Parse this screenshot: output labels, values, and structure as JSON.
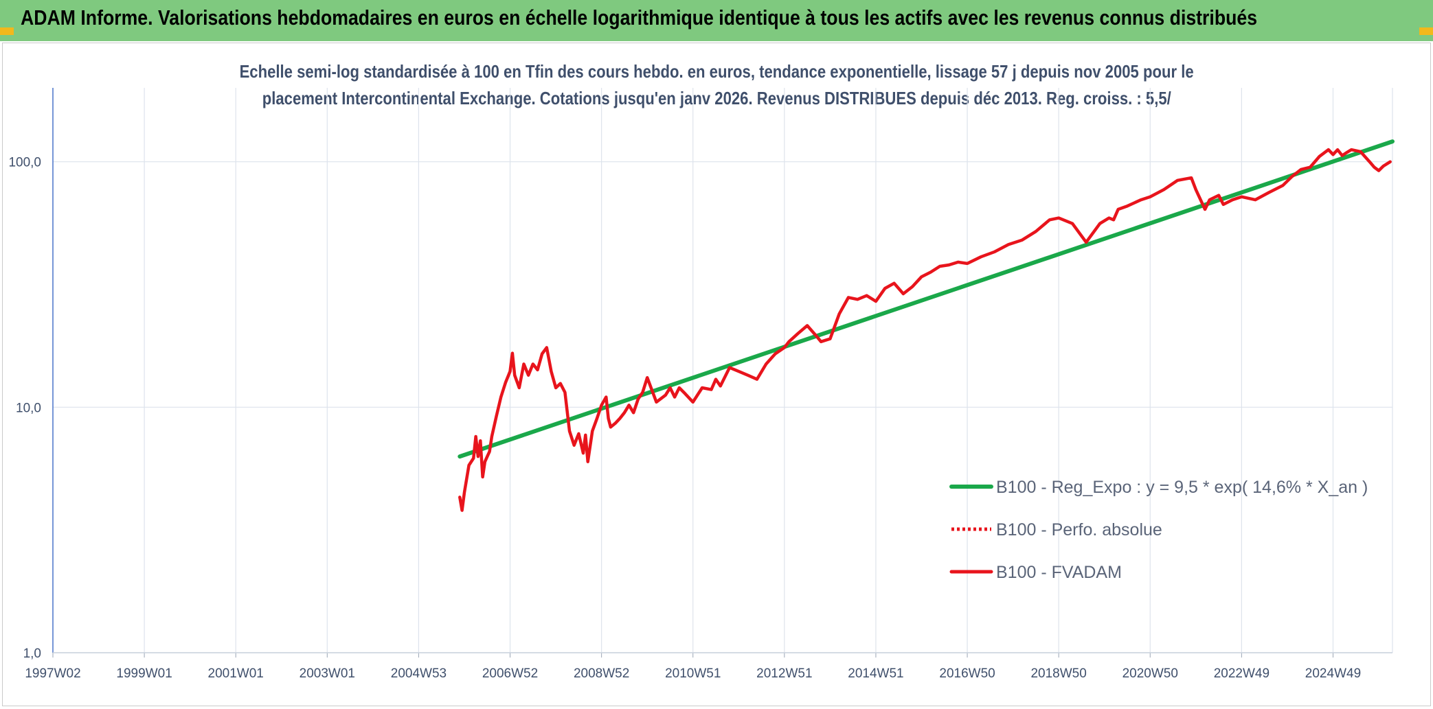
{
  "header": {
    "title": "ADAM Informe. Valorisations hebdomadaires en euros en échelle logarithmique identique à tous les actifs avec les revenus connus distribués",
    "background": "#7fc97f",
    "corner_color": "#f2b81c"
  },
  "chart_data": {
    "type": "line",
    "title_lines": [
      "Echelle semi-log standardisée à 100 en Tfin des cours hebdo. en euros, tendance exponentielle, lissage 57 j depuis nov 2005 pour le",
      "placement Intercontinental Exchange. Cotations jusqu'en janv 2026. Revenus DISTRIBUES depuis déc 2013. Reg. croiss. : 5,5/"
    ],
    "y_scale": "log",
    "ylim": [
      1,
      200
    ],
    "y_ticks": [
      {
        "value": 1,
        "label": "1,0"
      },
      {
        "value": 10,
        "label": "10,0"
      },
      {
        "value": 100,
        "label": "100,0"
      }
    ],
    "xlim": [
      1997.0,
      2026.3
    ],
    "x_ticks": [
      {
        "year": 1997.0,
        "label": "1997W02"
      },
      {
        "year": 1999.0,
        "label": "1999W01"
      },
      {
        "year": 2001.0,
        "label": "2001W01"
      },
      {
        "year": 2003.0,
        "label": "2003W01"
      },
      {
        "year": 2005.0,
        "label": "2004W53"
      },
      {
        "year": 2007.0,
        "label": "2006W52"
      },
      {
        "year": 2009.0,
        "label": "2008W52"
      },
      {
        "year": 2011.0,
        "label": "2010W51"
      },
      {
        "year": 2013.0,
        "label": "2012W51"
      },
      {
        "year": 2015.0,
        "label": "2014W51"
      },
      {
        "year": 2017.0,
        "label": "2016W50"
      },
      {
        "year": 2019.0,
        "label": "2018W50"
      },
      {
        "year": 2021.0,
        "label": "2020W50"
      },
      {
        "year": 2023.0,
        "label": "2022W49"
      },
      {
        "year": 2025.0,
        "label": "2024W49"
      }
    ],
    "grid": true,
    "legend_position": "bottom-right",
    "series": [
      {
        "name": "B100 - Reg_Expo : y = 9,5 * exp( 14,6% *  X_an )",
        "color": "#1aa84a",
        "style": "solid",
        "x": [
          2005.9,
          2026.3
        ],
        "y": [
          6.3,
          121
        ]
      },
      {
        "name": "B100 - Perfo. absolue",
        "color": "#e8141c",
        "style": "dotted",
        "x": [],
        "y": []
      },
      {
        "name": "B100 - FVADAM",
        "color": "#e8141c",
        "style": "solid",
        "x": [
          2005.9,
          2005.95,
          2006.0,
          2006.1,
          2006.2,
          2006.25,
          2006.3,
          2006.35,
          2006.4,
          2006.45,
          2006.5,
          2006.55,
          2006.6,
          2006.7,
          2006.8,
          2006.9,
          2007.0,
          2007.05,
          2007.1,
          2007.2,
          2007.3,
          2007.4,
          2007.5,
          2007.6,
          2007.7,
          2007.8,
          2007.9,
          2008.0,
          2008.1,
          2008.2,
          2008.3,
          2008.4,
          2008.5,
          2008.6,
          2008.65,
          2008.7,
          2008.8,
          2008.9,
          2009.0,
          2009.1,
          2009.15,
          2009.2,
          2009.3,
          2009.4,
          2009.5,
          2009.6,
          2009.7,
          2009.8,
          2009.9,
          2010.0,
          2010.2,
          2010.4,
          2010.5,
          2010.6,
          2010.7,
          2010.8,
          2011.0,
          2011.2,
          2011.4,
          2011.5,
          2011.6,
          2011.8,
          2012.0,
          2012.2,
          2012.4,
          2012.6,
          2012.8,
          2013.0,
          2013.1,
          2013.3,
          2013.5,
          2013.7,
          2013.8,
          2014.0,
          2014.2,
          2014.4,
          2014.6,
          2014.8,
          2015.0,
          2015.2,
          2015.4,
          2015.6,
          2015.8,
          2016.0,
          2016.2,
          2016.4,
          2016.6,
          2016.8,
          2017.0,
          2017.3,
          2017.6,
          2017.9,
          2018.2,
          2018.5,
          2018.8,
          2019.0,
          2019.3,
          2019.6,
          2019.9,
          2020.1,
          2020.2,
          2020.3,
          2020.5,
          2020.8,
          2021.0,
          2021.3,
          2021.6,
          2021.9,
          2022.0,
          2022.2,
          2022.3,
          2022.5,
          2022.6,
          2022.8,
          2023.0,
          2023.3,
          2023.6,
          2023.9,
          2024.1,
          2024.3,
          2024.5,
          2024.7,
          2024.9,
          2025.0,
          2025.1,
          2025.2,
          2025.3,
          2025.4,
          2025.6,
          2025.8,
          2025.9,
          2026.0,
          2026.1,
          2026.25
        ],
        "y": [
          4.3,
          3.8,
          4.5,
          5.8,
          6.2,
          7.6,
          6.3,
          7.3,
          5.2,
          6.0,
          6.3,
          6.6,
          7.6,
          9.2,
          11.0,
          12.6,
          14.0,
          16.6,
          13.5,
          12.0,
          15.0,
          13.5,
          15.0,
          14.2,
          16.5,
          17.5,
          14.0,
          12.0,
          12.5,
          11.5,
          8.0,
          7.0,
          7.8,
          6.5,
          7.7,
          6.0,
          8.0,
          9.0,
          10.2,
          11.0,
          9.0,
          8.3,
          8.6,
          9.0,
          9.5,
          10.2,
          9.5,
          10.8,
          11.5,
          13.2,
          10.5,
          11.2,
          12.0,
          11.0,
          12.0,
          11.5,
          10.5,
          12.0,
          11.8,
          13.0,
          12.2,
          14.5,
          14.0,
          13.5,
          13.0,
          15.0,
          16.5,
          17.5,
          18.5,
          20.0,
          21.5,
          19.5,
          18.5,
          19.0,
          24.0,
          28.0,
          27.5,
          28.5,
          27.0,
          30.5,
          32.0,
          29.0,
          31.0,
          34.0,
          35.5,
          37.5,
          38.0,
          39.0,
          38.5,
          41.0,
          43.0,
          46.0,
          48.0,
          52.0,
          58.0,
          59.0,
          56.0,
          47.0,
          56.0,
          59.0,
          58.0,
          64.0,
          66.0,
          70.0,
          72.0,
          77.0,
          84.0,
          86.0,
          77.0,
          64.0,
          70.0,
          73.0,
          67.0,
          70.0,
          72.0,
          70.0,
          75.0,
          80.0,
          87.0,
          93.0,
          95.0,
          105.0,
          112.0,
          107.0,
          112.0,
          106.0,
          109.0,
          112.0,
          110.0,
          100.0,
          95.0,
          92.0,
          96.0,
          100.0
        ]
      }
    ]
  }
}
